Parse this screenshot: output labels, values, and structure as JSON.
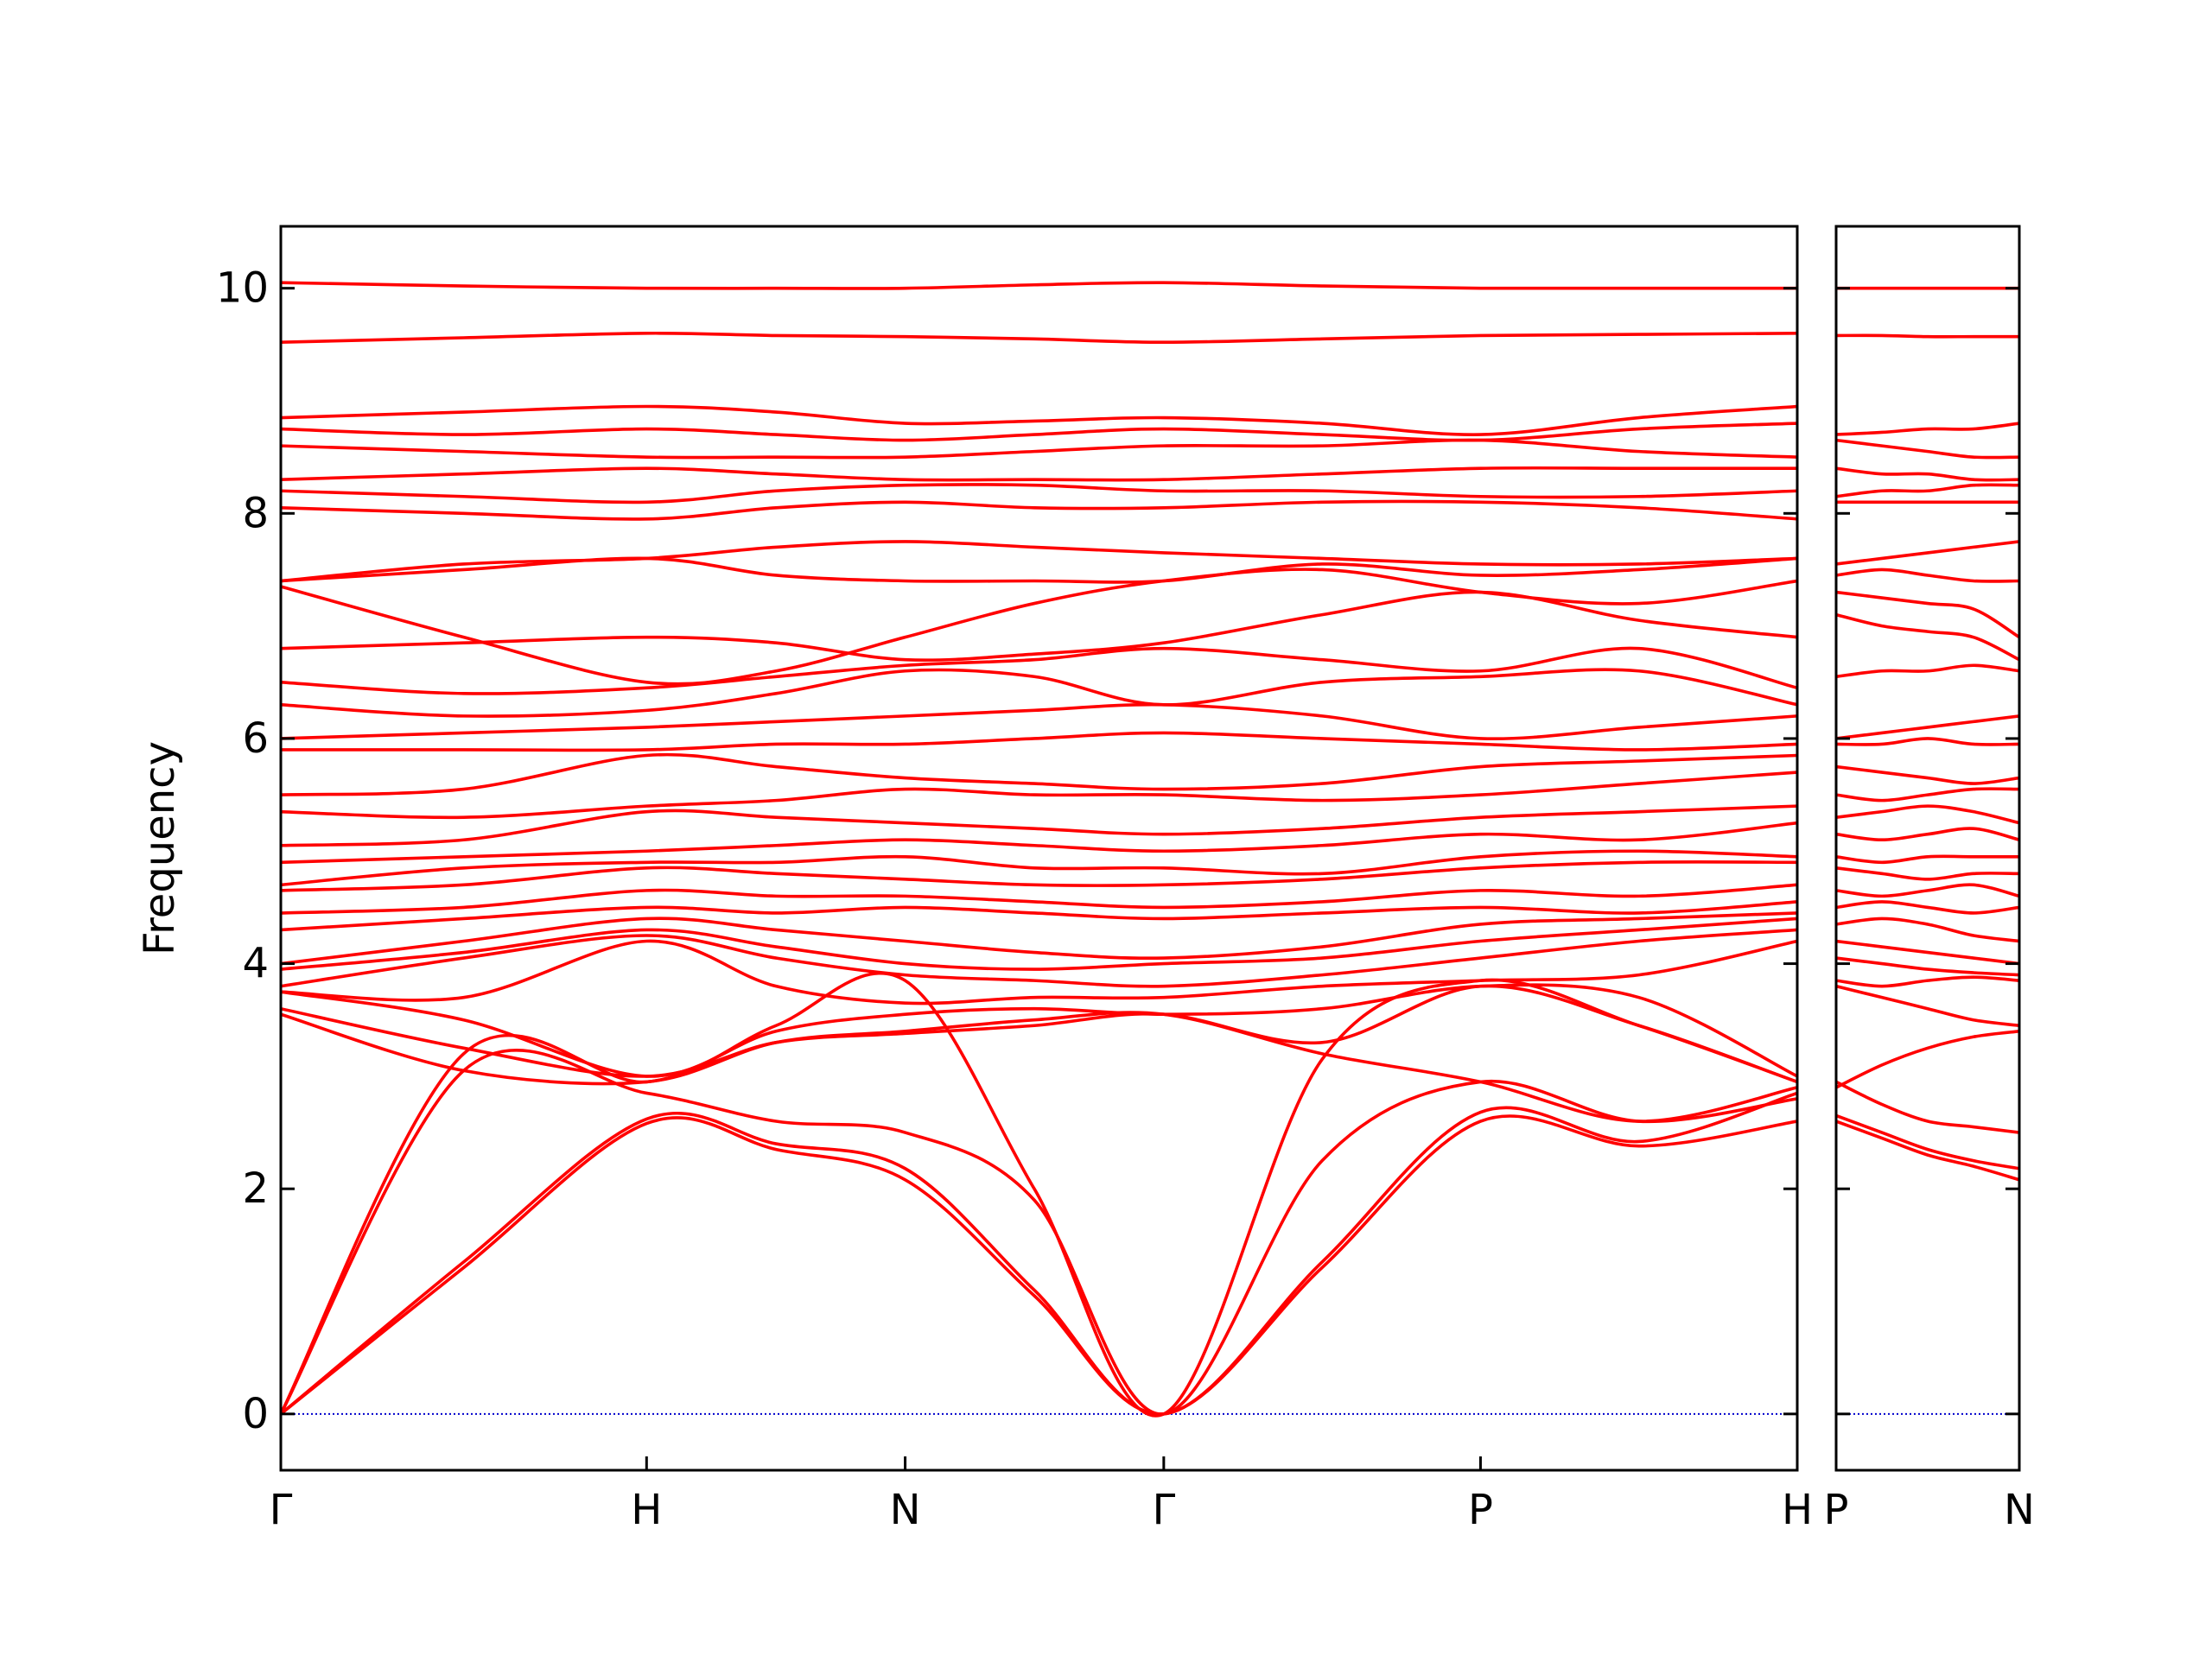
{
  "chart_data": [
    {
      "type": "line",
      "ylabel": "Frequency",
      "color": "#ff0000",
      "xlim": [
        0,
        4.146
      ],
      "ylim": [
        -0.5,
        10.55
      ],
      "xticks": [
        {
          "value": 0,
          "label": "Γ"
        },
        {
          "value": 1,
          "label": "H"
        },
        {
          "value": 1.707,
          "label": "N"
        },
        {
          "value": 2.414,
          "label": "Γ"
        },
        {
          "value": 3.28,
          "label": "P"
        },
        {
          "value": 4.146,
          "label": "H"
        }
      ],
      "yticks": [
        0,
        2,
        4,
        6,
        8,
        10
      ],
      "hlines": [
        0
      ],
      "hline_color": "#0000cc",
      "x": [
        0,
        0.5,
        1,
        1.354,
        1.707,
        2.06,
        2.414,
        2.847,
        3.28,
        3.713,
        4.146
      ],
      "series": [
        {
          "values": [
            0,
            1.3,
            2.58,
            2.35,
            2.08,
            1.05,
            0,
            1.3,
            2.6,
            2.38,
            2.6
          ]
        },
        {
          "values": [
            0,
            1.35,
            2.62,
            2.4,
            2.18,
            1.1,
            0,
            1.35,
            2.68,
            2.42,
            2.85
          ]
        },
        {
          "values": [
            0,
            3.05,
            2.85,
            2.6,
            2.5,
            1.9,
            0,
            2.25,
            2.95,
            2.6,
            2.8
          ]
        },
        {
          "values": [
            0,
            3.2,
            2.95,
            3.45,
            3.85,
            2.0,
            0,
            3.15,
            3.85,
            3.45,
            2.95
          ]
        },
        {
          "values": [
            3.55,
            3.05,
            2.95,
            3.3,
            3.4,
            3.5,
            3.55,
            3.2,
            2.95,
            2.6,
            2.9
          ]
        },
        {
          "values": [
            3.6,
            3.25,
            3.0,
            3.3,
            3.38,
            3.45,
            3.55,
            3.3,
            3.8,
            3.45,
            2.95
          ]
        },
        {
          "values": [
            3.75,
            3.5,
            3.0,
            3.4,
            3.55,
            3.6,
            3.55,
            3.6,
            3.8,
            3.7,
            3.0
          ]
        },
        {
          "values": [
            3.75,
            3.7,
            4.2,
            3.8,
            3.65,
            3.7,
            3.7,
            3.8,
            3.85,
            3.9,
            4.2
          ]
        },
        {
          "values": [
            3.8,
            4.05,
            4.25,
            4.05,
            3.9,
            3.85,
            3.8,
            3.9,
            4.05,
            4.2,
            4.3
          ]
        },
        {
          "values": [
            3.95,
            4.1,
            4.3,
            4.15,
            4.0,
            3.95,
            4.0,
            4.05,
            4.2,
            4.3,
            4.4
          ]
        },
        {
          "values": [
            4.0,
            4.2,
            4.4,
            4.3,
            4.2,
            4.1,
            4.05,
            4.15,
            4.35,
            4.4,
            4.45
          ]
        },
        {
          "values": [
            4.3,
            4.4,
            4.5,
            4.45,
            4.5,
            4.45,
            4.4,
            4.45,
            4.5,
            4.45,
            4.55
          ]
        },
        {
          "values": [
            4.45,
            4.5,
            4.65,
            4.6,
            4.6,
            4.55,
            4.5,
            4.55,
            4.65,
            4.6,
            4.7
          ]
        },
        {
          "values": [
            4.65,
            4.7,
            4.85,
            4.8,
            4.75,
            4.7,
            4.7,
            4.75,
            4.85,
            4.9,
            4.9
          ]
        },
        {
          "values": [
            4.7,
            4.85,
            4.9,
            4.9,
            4.95,
            4.85,
            4.85,
            4.8,
            4.95,
            5.0,
            4.95
          ]
        },
        {
          "values": [
            4.9,
            4.95,
            5.0,
            5.05,
            5.1,
            5.05,
            5.0,
            5.05,
            5.15,
            5.1,
            5.25
          ]
        },
        {
          "values": [
            5.05,
            5.1,
            5.35,
            5.3,
            5.25,
            5.2,
            5.15,
            5.2,
            5.3,
            5.35,
            5.4
          ]
        },
        {
          "values": [
            5.35,
            5.3,
            5.4,
            5.45,
            5.55,
            5.5,
            5.5,
            5.45,
            5.5,
            5.6,
            5.7
          ]
        },
        {
          "values": [
            5.5,
            5.55,
            5.85,
            5.75,
            5.65,
            5.6,
            5.55,
            5.6,
            5.75,
            5.8,
            5.85
          ]
        },
        {
          "values": [
            5.9,
            5.9,
            5.9,
            5.95,
            5.95,
            6.0,
            6.05,
            6.0,
            5.95,
            5.9,
            5.95
          ]
        },
        {
          "values": [
            6.0,
            6.05,
            6.1,
            6.15,
            6.2,
            6.25,
            6.3,
            6.2,
            6.0,
            6.1,
            6.2
          ]
        },
        {
          "values": [
            6.3,
            6.2,
            6.25,
            6.4,
            6.6,
            6.55,
            6.3,
            6.5,
            6.55,
            6.6,
            6.3
          ]
        },
        {
          "values": [
            6.5,
            6.4,
            6.45,
            6.55,
            6.65,
            6.7,
            6.8,
            6.7,
            6.6,
            6.8,
            6.45
          ]
        },
        {
          "values": [
            6.8,
            6.85,
            6.9,
            6.85,
            6.7,
            6.75,
            6.85,
            7.1,
            7.3,
            7.05,
            6.9
          ]
        },
        {
          "values": [
            7.35,
            6.9,
            6.5,
            6.6,
            6.9,
            7.2,
            7.4,
            7.5,
            7.3,
            7.2,
            7.4
          ]
        },
        {
          "values": [
            7.4,
            7.5,
            7.6,
            7.45,
            7.4,
            7.4,
            7.4,
            7.55,
            7.45,
            7.5,
            7.6
          ]
        },
        {
          "values": [
            7.4,
            7.55,
            7.6,
            7.7,
            7.75,
            7.7,
            7.65,
            7.6,
            7.55,
            7.55,
            7.6
          ]
        },
        {
          "values": [
            8.05,
            8.0,
            7.95,
            8.05,
            8.1,
            8.05,
            8.05,
            8.1,
            8.1,
            8.05,
            7.95
          ]
        },
        {
          "values": [
            8.2,
            8.15,
            8.1,
            8.2,
            8.25,
            8.25,
            8.2,
            8.2,
            8.15,
            8.15,
            8.2
          ]
        },
        {
          "values": [
            8.3,
            8.35,
            8.4,
            8.35,
            8.3,
            8.3,
            8.3,
            8.35,
            8.4,
            8.4,
            8.4
          ]
        },
        {
          "values": [
            8.6,
            8.55,
            8.5,
            8.5,
            8.5,
            8.55,
            8.6,
            8.6,
            8.65,
            8.55,
            8.5
          ]
        },
        {
          "values": [
            8.75,
            8.7,
            8.75,
            8.7,
            8.65,
            8.7,
            8.75,
            8.7,
            8.65,
            8.75,
            8.8
          ]
        },
        {
          "values": [
            8.85,
            8.9,
            8.95,
            8.9,
            8.8,
            8.82,
            8.85,
            8.8,
            8.7,
            8.85,
            8.95
          ]
        },
        {
          "values": [
            9.52,
            9.56,
            9.6,
            9.58,
            9.57,
            9.55,
            9.52,
            9.55,
            9.58,
            9.59,
            9.6
          ]
        },
        {
          "values": [
            10.05,
            10.02,
            10.0,
            10.0,
            10.0,
            10.03,
            10.05,
            10.02,
            10.0,
            10.0,
            10.0
          ]
        }
      ]
    },
    {
      "type": "line",
      "color": "#ff0000",
      "xlim": [
        0,
        0.5
      ],
      "ylim": [
        -0.5,
        10.55
      ],
      "xticks": [
        {
          "value": 0,
          "label": "P"
        },
        {
          "value": 0.5,
          "label": "N"
        }
      ],
      "yticks": [
        0,
        2,
        4,
        6,
        8,
        10
      ],
      "hlines": [
        0
      ],
      "hline_color": "#0000cc",
      "x": [
        0,
        0.125,
        0.25,
        0.375,
        0.5
      ],
      "series": [
        {
          "values": [
            2.6,
            2.45,
            2.3,
            2.2,
            2.08
          ]
        },
        {
          "values": [
            2.65,
            2.5,
            2.35,
            2.25,
            2.18
          ]
        },
        {
          "values": [
            2.95,
            2.75,
            2.6,
            2.55,
            2.5
          ]
        },
        {
          "values": [
            2.9,
            3.1,
            3.25,
            3.35,
            3.4
          ]
        },
        {
          "values": [
            3.8,
            3.7,
            3.6,
            3.5,
            3.45
          ]
        },
        {
          "values": [
            3.85,
            3.8,
            3.85,
            3.88,
            3.85
          ]
        },
        {
          "values": [
            4.05,
            4.0,
            3.95,
            3.92,
            3.9
          ]
        },
        {
          "values": [
            4.2,
            4.15,
            4.1,
            4.05,
            4.0
          ]
        },
        {
          "values": [
            4.35,
            4.4,
            4.35,
            4.25,
            4.2
          ]
        },
        {
          "values": [
            4.5,
            4.55,
            4.5,
            4.45,
            4.5
          ]
        },
        {
          "values": [
            4.65,
            4.6,
            4.65,
            4.7,
            4.6
          ]
        },
        {
          "values": [
            4.85,
            4.8,
            4.75,
            4.8,
            4.8
          ]
        },
        {
          "values": [
            4.95,
            4.9,
            4.95,
            4.95,
            4.95
          ]
        },
        {
          "values": [
            5.15,
            5.1,
            5.15,
            5.2,
            5.1
          ]
        },
        {
          "values": [
            5.3,
            5.35,
            5.4,
            5.35,
            5.25
          ]
        },
        {
          "values": [
            5.5,
            5.45,
            5.5,
            5.55,
            5.55
          ]
        },
        {
          "values": [
            5.75,
            5.7,
            5.65,
            5.6,
            5.65
          ]
        },
        {
          "values": [
            5.95,
            5.95,
            6.0,
            5.95,
            5.95
          ]
        },
        {
          "values": [
            6.0,
            6.05,
            6.1,
            6.15,
            6.2
          ]
        },
        {
          "values": [
            6.55,
            6.6,
            6.6,
            6.65,
            6.6
          ]
        },
        {
          "values": [
            7.1,
            7.0,
            6.95,
            6.9,
            6.7
          ]
        },
        {
          "values": [
            7.3,
            7.25,
            7.2,
            7.15,
            6.9
          ]
        },
        {
          "values": [
            7.45,
            7.5,
            7.45,
            7.4,
            7.4
          ]
        },
        {
          "values": [
            7.55,
            7.6,
            7.65,
            7.7,
            7.75
          ]
        },
        {
          "values": [
            8.1,
            8.1,
            8.1,
            8.1,
            8.1
          ]
        },
        {
          "values": [
            8.15,
            8.2,
            8.2,
            8.25,
            8.25
          ]
        },
        {
          "values": [
            8.4,
            8.35,
            8.35,
            8.3,
            8.3
          ]
        },
        {
          "values": [
            8.65,
            8.6,
            8.55,
            8.5,
            8.5
          ]
        },
        {
          "values": [
            8.7,
            8.72,
            8.75,
            8.75,
            8.8
          ]
        },
        {
          "values": [
            9.58,
            9.58,
            9.57,
            9.57,
            9.57
          ]
        },
        {
          "values": [
            10.0,
            10.0,
            10.0,
            10.0,
            10.0
          ]
        }
      ]
    }
  ]
}
